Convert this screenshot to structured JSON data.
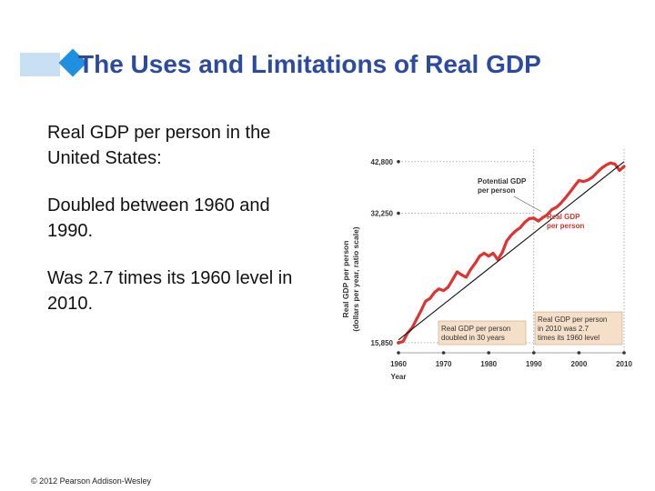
{
  "slide": {
    "title": "The Uses and Limitations of Real GDP",
    "bullets": [
      "Real GDP per person in the United States:",
      "Doubled between 1960 and 1990.",
      "Was 2.7 times its 1960 level in 2010."
    ],
    "copyright": "© 2012 Pearson Addison-Wesley",
    "accent_color": "#2c4aa0",
    "diamond_color": "#1f8fe0"
  },
  "chart_data": {
    "type": "line",
    "xlabel": "Year",
    "ylabel_line1": "Real GDP per person",
    "ylabel_line2": "(dollars per year, ratio scale)",
    "x_ticks": [
      1960,
      1970,
      1980,
      1990,
      2000,
      2010
    ],
    "y_ticks": [
      15850,
      32250,
      42800
    ],
    "y_tick_labels": [
      "15,850",
      "32,250",
      "42,800"
    ],
    "xlim": [
      1960,
      2010
    ],
    "scale": "log",
    "series": [
      {
        "name": "Real GDP per person",
        "color": "#e0322e",
        "x": [
          1960,
          1961,
          1962,
          1963,
          1964,
          1965,
          1966,
          1967,
          1968,
          1969,
          1970,
          1971,
          1972,
          1973,
          1974,
          1975,
          1976,
          1977,
          1978,
          1979,
          1980,
          1981,
          1982,
          1983,
          1984,
          1985,
          1986,
          1987,
          1988,
          1989,
          1990,
          1991,
          1992,
          1993,
          1994,
          1995,
          1996,
          1997,
          1998,
          1999,
          2000,
          2001,
          2002,
          2003,
          2004,
          2005,
          2006,
          2007,
          2008,
          2009,
          2010
        ],
        "values": [
          15850,
          15950,
          16700,
          17200,
          18000,
          18900,
          19900,
          20200,
          20900,
          21300,
          21100,
          21500,
          22400,
          23400,
          23000,
          22700,
          23700,
          24500,
          25500,
          25900,
          25500,
          25900,
          25000,
          26000,
          27700,
          28600,
          29300,
          29800,
          30700,
          31300,
          31400,
          30900,
          31500,
          32000,
          32900,
          33300,
          34100,
          35100,
          36200,
          37400,
          38600,
          38400,
          38700,
          39300,
          40300,
          41300,
          42000,
          42500,
          42200,
          40800,
          41700
        ]
      },
      {
        "name": "Potential GDP per person",
        "color": "#111111",
        "x": [
          1960,
          2010
        ],
        "values": [
          16100,
          42800
        ]
      }
    ],
    "annotations": {
      "potential_label": [
        "Potential GDP",
        "per person"
      ],
      "real_label": [
        "Real GDP",
        "per person"
      ],
      "doubled_box": [
        "Real GDP per person",
        "doubled in 30 years"
      ],
      "times_box": [
        "Real GDP per person",
        "in 2010 was 2.7",
        "times its 1960 level"
      ]
    },
    "grid": false
  }
}
